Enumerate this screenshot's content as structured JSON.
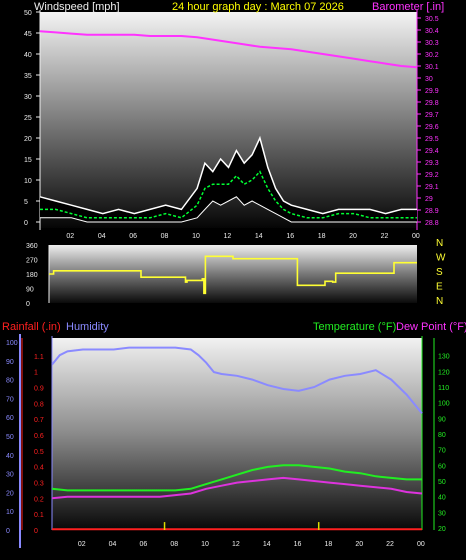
{
  "colors": {
    "wind": "#ffffff",
    "gust": "#ffffff",
    "avg": "#00ff33",
    "baro": "#ff33ff",
    "dir": "#ffff33",
    "rain": "#ff2020",
    "humidity": "#8a8aff",
    "temp": "#22ee22",
    "dew": "#dd33dd",
    "title": "#ffff00",
    "tick": "#eeeeee"
  },
  "chart_data": [
    {
      "type": "line",
      "title": "24 hour graph day : March 07 2026",
      "ylabel": "Windspeed [mph]",
      "y2label": "Barometer [.in]",
      "ylim": [
        0,
        50
      ],
      "y2lim": [
        28.75,
        30.55
      ],
      "xlim": [
        0,
        24
      ],
      "grid": false,
      "x_ticks": [
        "02",
        "04",
        "06",
        "08",
        "10",
        "12",
        "14",
        "16",
        "18",
        "20",
        "22",
        "00"
      ],
      "y_ticks": [
        "0",
        "5",
        "10",
        "15",
        "20",
        "25",
        "30",
        "35",
        "40",
        "45",
        "50"
      ],
      "y2_ticks": [
        "28.8",
        "28.9",
        "29",
        "29.1",
        "29.2",
        "29.3",
        "29.4",
        "29.5",
        "29.6",
        "29.7",
        "29.8",
        "29.9",
        "30",
        "30.1",
        "30.2",
        "30.3",
        "30.4",
        "30.5"
      ],
      "series": [
        {
          "name": "Windspeed",
          "type": "band",
          "x": [
            0,
            1,
            2,
            3,
            4,
            5,
            6,
            7,
            8,
            9,
            10,
            10.5,
            11,
            11.5,
            12,
            12.5,
            13,
            13.5,
            14,
            14.5,
            15,
            15.5,
            16,
            17,
            18,
            19,
            20,
            21,
            22,
            23,
            24
          ],
          "min": [
            1,
            1,
            1,
            0,
            0,
            0,
            0,
            0,
            0,
            0,
            1,
            3,
            5,
            4,
            5,
            6,
            4,
            5,
            4,
            3,
            2,
            1,
            0,
            0,
            0,
            0,
            0,
            0,
            0,
            0,
            0
          ],
          "max": [
            6,
            5,
            4,
            3,
            2,
            3,
            2,
            3,
            4,
            3,
            8,
            14,
            12,
            15,
            13,
            17,
            14,
            16,
            20,
            13,
            8,
            5,
            4,
            3,
            2,
            3,
            3,
            3,
            2,
            3,
            3
          ]
        },
        {
          "name": "Average",
          "type": "line",
          "x": [
            0,
            1,
            2,
            3,
            4,
            5,
            6,
            7,
            8,
            9,
            10,
            10.5,
            11,
            11.5,
            12,
            12.5,
            13,
            13.5,
            14,
            14.5,
            15,
            15.5,
            16,
            17,
            18,
            19,
            20,
            21,
            22,
            23,
            24
          ],
          "y": [
            3,
            3,
            2,
            1,
            1,
            1,
            1,
            1,
            2,
            1,
            4,
            8,
            9,
            9,
            9,
            11,
            9,
            10,
            12,
            8,
            5,
            3,
            2,
            1,
            1,
            2,
            2,
            1,
            1,
            1,
            1
          ]
        },
        {
          "name": "Barometer",
          "axis": "right",
          "x": [
            0,
            1,
            2,
            3,
            4,
            5,
            6,
            7,
            8,
            9,
            10,
            11,
            12,
            13,
            14,
            15,
            16,
            17,
            18,
            19,
            20,
            21,
            22,
            23,
            24
          ],
          "y": [
            30.39,
            30.38,
            30.37,
            30.36,
            30.36,
            30.36,
            30.36,
            30.35,
            30.35,
            30.35,
            30.34,
            30.32,
            30.3,
            30.28,
            30.26,
            30.25,
            30.24,
            30.22,
            30.2,
            30.18,
            30.16,
            30.14,
            30.12,
            30.1,
            30.09
          ]
        }
      ]
    },
    {
      "type": "line",
      "title": "",
      "ylim": [
        0,
        360
      ],
      "xlim": [
        0,
        24
      ],
      "y_ticks": [
        "0",
        "90",
        "180",
        "270",
        "360"
      ],
      "compass_labels": [
        "N",
        "W",
        "S",
        "E",
        "N"
      ],
      "series": [
        {
          "name": "Wind direction",
          "type": "step",
          "x": [
            0,
            0.3,
            6,
            8.8,
            8.9,
            9,
            10,
            10.1,
            10.2,
            12,
            15,
            16,
            16.2,
            17.7,
            18,
            18.5,
            18.7,
            20,
            22.5,
            24
          ],
          "y": [
            180,
            200,
            160,
            160,
            130,
            140,
            150,
            60,
            290,
            275,
            275,
            275,
            110,
            110,
            135,
            130,
            185,
            185,
            250,
            250
          ]
        }
      ]
    },
    {
      "type": "line",
      "title": "",
      "ylabel": "Rainfall (.in)",
      "y2label": "Humidity",
      "y3label": "Temperature (°F)",
      "y4label": "Dew Point (°F)",
      "ylim": [
        0,
        1.2
      ],
      "y2lim": [
        0,
        100
      ],
      "y3lim": [
        20,
        140
      ],
      "xlim": [
        0,
        24
      ],
      "x_ticks": [
        "02",
        "04",
        "06",
        "08",
        "10",
        "12",
        "14",
        "16",
        "18",
        "20",
        "22",
        "00"
      ],
      "rain_ticks": [
        "0",
        "0.1",
        "0.2",
        "0.3",
        "0.4",
        "0.5",
        "0.6",
        "0.7",
        "0.8",
        "0.9",
        "1",
        "1.1"
      ],
      "hum_ticks": [
        "0",
        "10",
        "20",
        "30",
        "40",
        "50",
        "60",
        "70",
        "80",
        "90",
        "100"
      ],
      "temp_ticks": [
        "20",
        "30",
        "40",
        "50",
        "60",
        "70",
        "80",
        "90",
        "100",
        "110",
        "120",
        "130"
      ],
      "series": [
        {
          "name": "Humidity",
          "axis": "humidity",
          "x": [
            0,
            0.5,
            1,
            2,
            3,
            4,
            5,
            6,
            7,
            8,
            9,
            9.5,
            10,
            10.5,
            11,
            12,
            13,
            14,
            15,
            16,
            17,
            18,
            19,
            20,
            21,
            22,
            23,
            24
          ],
          "y": [
            88,
            93,
            95,
            96,
            96,
            96,
            97,
            97,
            97,
            97,
            96,
            93,
            89,
            84,
            83,
            82,
            80,
            77,
            75,
            74,
            76,
            80,
            82,
            83,
            85,
            80,
            72,
            62
          ]
        },
        {
          "name": "Temperature",
          "axis": "temp",
          "x": [
            0,
            1,
            2,
            3,
            4,
            5,
            6,
            7,
            8,
            9,
            10,
            11,
            12,
            13,
            14,
            15,
            16,
            17,
            18,
            19,
            20,
            21,
            22,
            23,
            24
          ],
          "y": [
            45,
            44,
            44,
            44,
            44,
            44,
            44,
            44,
            44,
            45,
            48,
            51,
            54,
            57,
            59,
            60,
            60,
            59,
            58,
            56,
            55,
            53,
            52,
            51,
            51
          ]
        },
        {
          "name": "Dew Point",
          "axis": "temp",
          "x": [
            0,
            1,
            2,
            3,
            4,
            5,
            6,
            7,
            8,
            9,
            10,
            11,
            12,
            13,
            14,
            15,
            16,
            17,
            18,
            19,
            20,
            21,
            22,
            23,
            24
          ],
          "y": [
            39,
            40,
            40,
            40,
            40,
            40,
            40,
            40,
            41,
            42,
            45,
            47,
            49,
            50,
            51,
            52,
            51,
            50,
            49,
            48,
            47,
            46,
            45,
            43,
            42
          ]
        },
        {
          "name": "Rainfall",
          "axis": "rain",
          "x": [
            0,
            24
          ],
          "y": [
            0.005,
            0.005
          ]
        }
      ],
      "bars": [
        {
          "x": 7.3,
          "value": 0.05
        },
        {
          "x": 17.3,
          "value": 0.05
        }
      ]
    }
  ]
}
